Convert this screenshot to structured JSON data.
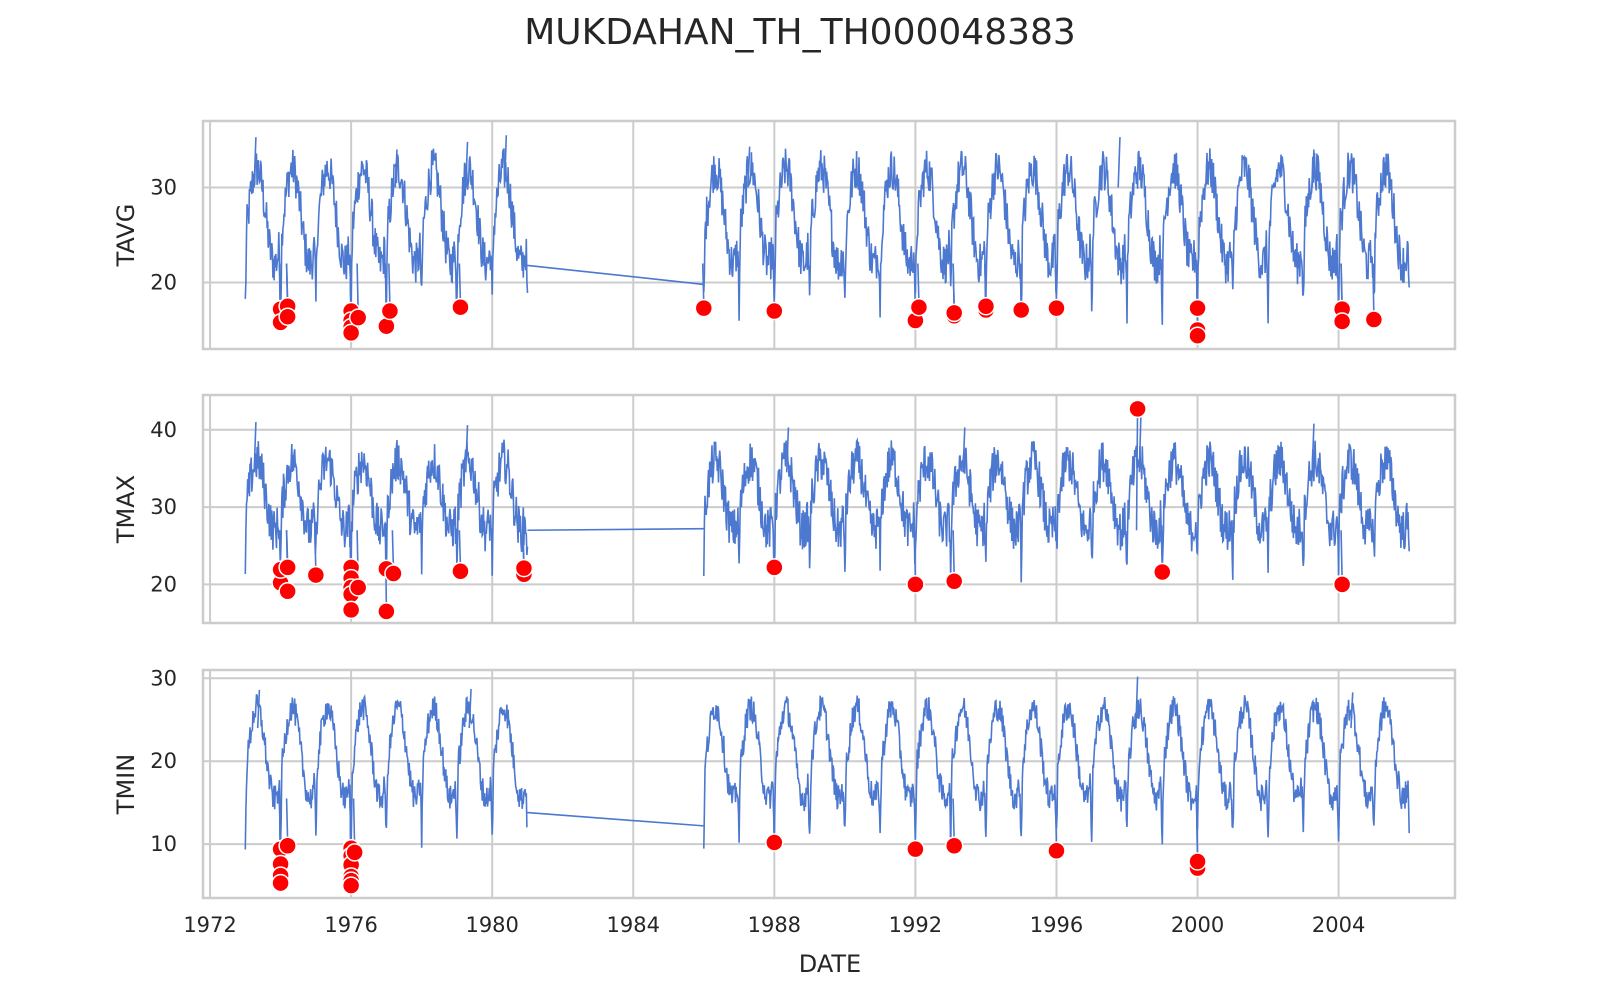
{
  "chart_data": {
    "type": "line",
    "title": "MUKDAHAN_TH_TH000048383",
    "xlabel": "DATE",
    "xlim": [
      1971.8,
      2007.3
    ],
    "x_ticks": [
      1972,
      1976,
      1980,
      1984,
      1988,
      1992,
      1996,
      2000,
      2004
    ],
    "grid": true,
    "line_color": "#4c78d0",
    "marker_color": "#ff0000",
    "observation_periods": [
      [
        1973.0,
        1981.0
      ],
      [
        1986.0,
        2006.0
      ]
    ],
    "subplots": [
      {
        "ylabel": "TAVG",
        "ylim": [
          13.0,
          37.0
        ],
        "y_ticks": [
          20,
          30
        ],
        "seasonal_mean": 27.0,
        "seasonal_amplitude": 5.0,
        "noise": 2.2,
        "gap_line": [
          [
            1981.0,
            21.8
          ],
          [
            1986.0,
            19.8
          ]
        ],
        "peaks": [
          [
            1973.3,
            35.3
          ],
          [
            1977.3,
            34.0
          ],
          [
            1979.3,
            34.8
          ],
          [
            1980.4,
            35.5
          ],
          [
            1987.3,
            34.3
          ],
          [
            1997.8,
            35.3
          ],
          [
            2003.3,
            34.0
          ]
        ],
        "outliers": [
          [
            1974.0,
            17.2
          ],
          [
            1974.0,
            15.8
          ],
          [
            1974.2,
            17.5
          ],
          [
            1974.2,
            16.4
          ],
          [
            1976.0,
            17.0
          ],
          [
            1976.0,
            16.0
          ],
          [
            1976.0,
            15.3
          ],
          [
            1976.0,
            14.7
          ],
          [
            1976.2,
            16.3
          ],
          [
            1977.0,
            15.4
          ],
          [
            1977.1,
            17.0
          ],
          [
            1979.1,
            17.4
          ],
          [
            1986.0,
            17.3
          ],
          [
            1988.0,
            17.0
          ],
          [
            1992.0,
            16.0
          ],
          [
            1992.1,
            17.4
          ],
          [
            1993.1,
            16.5
          ],
          [
            1993.1,
            16.8
          ],
          [
            1994.0,
            17.1
          ],
          [
            1994.0,
            17.5
          ],
          [
            1995.0,
            17.1
          ],
          [
            1996.0,
            17.3
          ],
          [
            2000.0,
            17.3
          ],
          [
            2000.0,
            15.0
          ],
          [
            2000.0,
            14.4
          ],
          [
            2004.1,
            17.2
          ],
          [
            2004.1,
            15.9
          ],
          [
            2005.0,
            16.1
          ]
        ]
      },
      {
        "ylabel": "TMAX",
        "ylim": [
          15.0,
          44.5
        ],
        "y_ticks": [
          20,
          30,
          40
        ],
        "seasonal_mean": 31.5,
        "seasonal_amplitude": 4.5,
        "noise": 2.8,
        "gap_line": [
          [
            1981.0,
            27.0
          ],
          [
            1986.0,
            27.2
          ]
        ],
        "peaks": [
          [
            1973.3,
            41.0
          ],
          [
            1979.3,
            40.6
          ],
          [
            1988.4,
            40.3
          ],
          [
            1993.4,
            40.3
          ],
          [
            1998.4,
            43.0
          ],
          [
            2003.3,
            40.8
          ]
        ],
        "outliers": [
          [
            1974.0,
            20.2
          ],
          [
            1974.0,
            21.9
          ],
          [
            1974.2,
            22.2
          ],
          [
            1974.2,
            19.1
          ],
          [
            1975.0,
            21.2
          ],
          [
            1976.0,
            22.2
          ],
          [
            1976.0,
            20.8
          ],
          [
            1976.0,
            19.6
          ],
          [
            1976.0,
            18.7
          ],
          [
            1976.0,
            16.7
          ],
          [
            1976.2,
            19.6
          ],
          [
            1977.0,
            22.0
          ],
          [
            1977.0,
            16.5
          ],
          [
            1977.2,
            21.4
          ],
          [
            1979.1,
            21.7
          ],
          [
            1980.9,
            21.3
          ],
          [
            1980.9,
            22.1
          ],
          [
            1988.0,
            22.2
          ],
          [
            1992.0,
            20.0
          ],
          [
            1993.1,
            20.4
          ],
          [
            1998.3,
            42.7
          ],
          [
            1999.0,
            21.6
          ],
          [
            2004.1,
            20.0
          ]
        ]
      },
      {
        "ylabel": "TMIN",
        "ylim": [
          3.5,
          31.0
        ],
        "y_ticks": [
          10,
          20,
          30
        ],
        "seasonal_mean": 21.0,
        "seasonal_amplitude": 5.5,
        "noise": 1.6,
        "gap_line": [
          [
            1981.0,
            13.8
          ],
          [
            1986.0,
            12.2
          ]
        ],
        "peaks": [
          [
            1973.4,
            28.6
          ],
          [
            1979.4,
            28.7
          ],
          [
            1998.3,
            30.2
          ],
          [
            2004.4,
            28.3
          ]
        ],
        "outliers": [
          [
            1974.0,
            9.4
          ],
          [
            1974.0,
            7.6
          ],
          [
            1974.0,
            6.2
          ],
          [
            1974.0,
            5.3
          ],
          [
            1974.2,
            9.8
          ],
          [
            1976.0,
            9.5
          ],
          [
            1976.0,
            8.6
          ],
          [
            1976.0,
            7.5
          ],
          [
            1976.0,
            6.1
          ],
          [
            1976.0,
            5.6
          ],
          [
            1976.0,
            5.0
          ],
          [
            1976.1,
            9.0
          ],
          [
            1988.0,
            10.2
          ],
          [
            1992.0,
            9.4
          ],
          [
            1993.1,
            9.8
          ],
          [
            1996.0,
            9.2
          ],
          [
            2000.0,
            7.1
          ],
          [
            2000.0,
            7.9
          ]
        ]
      }
    ]
  }
}
